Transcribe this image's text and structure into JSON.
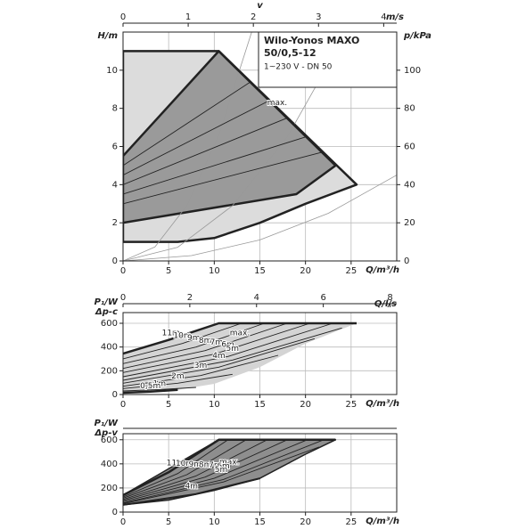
{
  "chart_data": [
    {
      "type": "line",
      "title": "Wilo-Yonos MAXO",
      "subtitle": "50/0,5-12",
      "note": "1~230 V - DN 50",
      "y_label": "H/m",
      "y2_label": "p/kPa",
      "x_label": "Q/m³/h",
      "x2_label": "v",
      "x2_unit": "m/s",
      "xlim": [
        0,
        30
      ],
      "xticks": [
        0,
        5,
        10,
        15,
        20,
        25
      ],
      "ylim": [
        0,
        12
      ],
      "yticks": [
        0,
        2,
        4,
        6,
        8,
        10
      ],
      "x2lim": [
        0,
        4.2
      ],
      "x2ticks": [
        0,
        1,
        2,
        3,
        4
      ],
      "y2lim": [
        0,
        120
      ],
      "y2ticks": [
        0,
        20,
        40,
        60,
        80,
        100
      ],
      "grid": true,
      "series": [
        {
          "color": "#222222",
          "fill": "#dcdcdc",
          "width": 2.5,
          "closed": true,
          "x": [
            0,
            10.5,
            25.6,
            20,
            15,
            10,
            6,
            0
          ],
          "y": [
            11,
            11,
            4,
            3,
            2,
            1.2,
            1,
            1
          ]
        },
        {
          "color": "#222222",
          "fill": "#9a9a9a",
          "width": 2.5,
          "closed": true,
          "x": [
            0,
            10.5,
            23.3,
            19,
            0
          ],
          "y": [
            5.5,
            11,
            5,
            3.5,
            2
          ]
        },
        {
          "color": "#999999",
          "width": 0.8,
          "x": [
            0,
            7.5,
            15,
            22.5,
            30
          ],
          "y": [
            0,
            0.28,
            1.1,
            2.5,
            4.5
          ]
        },
        {
          "color": "#999999",
          "width": 0.8,
          "x": [
            0,
            6,
            12,
            18,
            24.5
          ],
          "y": [
            0,
            0.72,
            2.9,
            6.5,
            12
          ]
        },
        {
          "color": "#999999",
          "width": 0.8,
          "x": [
            0,
            3.5,
            7,
            10.5,
            14.1
          ],
          "y": [
            0,
            0.74,
            2.9,
            6.6,
            12
          ]
        },
        {
          "color": "#222222",
          "width": 0.9,
          "x": [
            0,
            21.8
          ],
          "y": [
            3,
            5.7
          ]
        },
        {
          "color": "#222222",
          "width": 0.9,
          "x": [
            0,
            20
          ],
          "y": [
            3.5,
            6.5
          ]
        },
        {
          "color": "#222222",
          "width": 0.9,
          "x": [
            0,
            18
          ],
          "y": [
            4,
            7.5
          ]
        },
        {
          "color": "#222222",
          "width": 0.9,
          "x": [
            0,
            16
          ],
          "y": [
            4.5,
            8.4
          ]
        },
        {
          "color": "#222222",
          "width": 0.9,
          "x": [
            0,
            14
          ],
          "y": [
            5,
            9.4
          ]
        },
        {
          "name": "max.",
          "color": "#222222",
          "width": 2.5,
          "x": [
            10.5,
            23.3
          ],
          "y": [
            11,
            5
          ]
        }
      ]
    },
    {
      "type": "line",
      "y_label": "P₁/W",
      "y_sublabel": "Δp-c",
      "x_label": "Q/m³/h",
      "x2_label": "Q/l/s",
      "xlim": [
        0,
        30
      ],
      "xticks": [
        0,
        5,
        10,
        15,
        20,
        25
      ],
      "ylim": [
        0,
        690
      ],
      "yticks": [
        0,
        200,
        400,
        600
      ],
      "x2lim": [
        0,
        8.2
      ],
      "x2ticks": [
        0,
        2,
        4,
        6,
        8
      ],
      "grid": true,
      "series": [
        {
          "color": "none",
          "fill": "#d4d4d4",
          "width": 1,
          "closed": true,
          "x": [
            0,
            5,
            10.5,
            25.6,
            20,
            15,
            10,
            6,
            0
          ],
          "y": [
            345,
            460,
            600,
            600,
            430,
            230,
            90,
            40,
            25
          ]
        },
        {
          "name": "max.",
          "color": "#222222",
          "width": 2.5,
          "x": [
            0,
            5,
            10.5,
            25.6
          ],
          "y": [
            345,
            460,
            600,
            600
          ]
        },
        {
          "name": "11m",
          "color": "#222222",
          "width": 0.9,
          "x": [
            0,
            5,
            10.5
          ],
          "y": [
            345,
            460,
            600
          ]
        },
        {
          "name": "10m",
          "color": "#222222",
          "width": 0.9,
          "x": [
            0,
            6.5,
            13
          ],
          "y": [
            300,
            430,
            600
          ]
        },
        {
          "name": "9m",
          "color": "#222222",
          "width": 0.9,
          "x": [
            0,
            8,
            15.5
          ],
          "y": [
            260,
            400,
            600
          ]
        },
        {
          "name": "8m",
          "color": "#222222",
          "width": 0.9,
          "x": [
            0,
            9,
            18
          ],
          "y": [
            220,
            370,
            600
          ]
        },
        {
          "name": "7m",
          "color": "#222222",
          "width": 0.9,
          "x": [
            0,
            10,
            20.5
          ],
          "y": [
            185,
            340,
            600
          ]
        },
        {
          "name": "6m",
          "color": "#222222",
          "width": 0.9,
          "x": [
            0,
            11.5,
            23
          ],
          "y": [
            150,
            320,
            600
          ]
        },
        {
          "name": "5m",
          "color": "#222222",
          "width": 0.9,
          "x": [
            0,
            12,
            24
          ],
          "y": [
            120,
            290,
            560
          ]
        },
        {
          "name": "4m",
          "color": "#222222",
          "width": 0.9,
          "x": [
            0,
            10.5,
            21
          ],
          "y": [
            95,
            230,
            470
          ]
        },
        {
          "name": "3m",
          "color": "#222222",
          "width": 0.9,
          "x": [
            0,
            8.5,
            17
          ],
          "y": [
            70,
            160,
            330
          ]
        },
        {
          "name": "2m",
          "color": "#222222",
          "width": 0.9,
          "x": [
            0,
            6,
            12
          ],
          "y": [
            50,
            95,
            170
          ]
        },
        {
          "name": "1m",
          "color": "#222222",
          "width": 0.9,
          "x": [
            0,
            4,
            8
          ],
          "y": [
            30,
            42,
            60
          ]
        },
        {
          "name": "0,5m",
          "color": "#222222",
          "width": 2.5,
          "x": [
            0,
            3,
            6
          ],
          "y": [
            15,
            25,
            40
          ]
        }
      ]
    },
    {
      "type": "line",
      "y_label": "P₁/W",
      "y_sublabel": "Δp-v",
      "x_label": "Q/m³/h",
      "xlim": [
        0,
        30
      ],
      "xticks": [
        0,
        5,
        10,
        15,
        20,
        25
      ],
      "ylim": [
        0,
        650
      ],
      "yticks": [
        0,
        200,
        400,
        600
      ],
      "grid": true,
      "series": [
        {
          "color": "#222222",
          "fill": "#8e8e8e",
          "width": 1.5,
          "closed": true,
          "x": [
            0,
            10.5,
            23.3,
            20,
            15,
            10,
            5,
            0
          ],
          "y": [
            140,
            600,
            600,
            480,
            280,
            180,
            100,
            60
          ]
        },
        {
          "name": "max.",
          "color": "#222222",
          "width": 2.5,
          "x": [
            0,
            5,
            10.5,
            23.3
          ],
          "y": [
            140,
            330,
            600,
            600
          ]
        },
        {
          "name": "11m",
          "color": "#222222",
          "width": 0.9,
          "x": [
            0,
            6,
            11.5
          ],
          "y": [
            125,
            320,
            600
          ]
        },
        {
          "name": "10m",
          "color": "#222222",
          "width": 0.9,
          "x": [
            0,
            7,
            13.5
          ],
          "y": [
            115,
            310,
            600
          ]
        },
        {
          "name": "9m",
          "color": "#222222",
          "width": 0.9,
          "x": [
            0,
            8,
            15.8
          ],
          "y": [
            105,
            300,
            600
          ]
        },
        {
          "name": "8m",
          "color": "#222222",
          "width": 0.9,
          "x": [
            0,
            9,
            18
          ],
          "y": [
            95,
            290,
            600
          ]
        },
        {
          "name": "7m",
          "color": "#222222",
          "width": 0.9,
          "x": [
            0,
            10,
            20.2
          ],
          "y": [
            85,
            280,
            600
          ]
        },
        {
          "name": "6m",
          "color": "#222222",
          "width": 0.9,
          "x": [
            0,
            11,
            22
          ],
          "y": [
            75,
            270,
            600
          ]
        },
        {
          "name": "5m",
          "color": "#222222",
          "width": 0.9,
          "x": [
            0,
            11,
            21.5
          ],
          "y": [
            70,
            250,
            540
          ]
        },
        {
          "name": "4m",
          "color": "#222222",
          "width": 2,
          "x": [
            0,
            8,
            15
          ],
          "y": [
            60,
            150,
            280
          ]
        }
      ]
    }
  ]
}
